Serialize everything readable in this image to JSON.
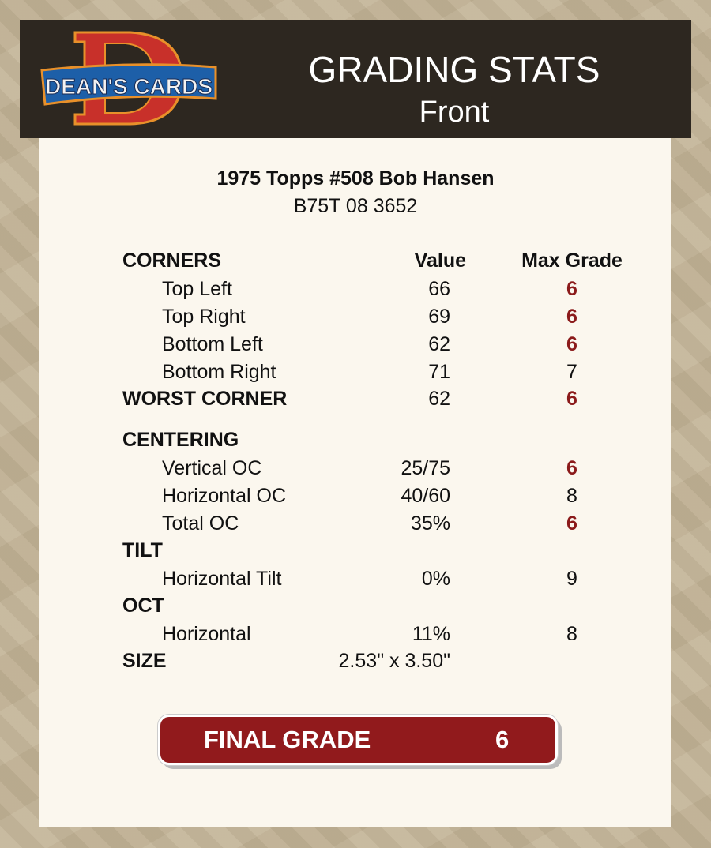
{
  "header": {
    "logo_text": "DEAN'S CARDS",
    "title": "GRADING STATS",
    "subtitle": "Front"
  },
  "card": {
    "name": "1975 Topps #508 Bob Hansen",
    "id": "B75T 08 3652"
  },
  "columns": {
    "value": "Value",
    "max_grade": "Max Grade"
  },
  "rows": [
    {
      "label": "CORNERS",
      "type": "section",
      "value": "",
      "max": "",
      "header": true
    },
    {
      "label": "Top Left",
      "type": "sub",
      "value": "66",
      "max": "6",
      "limiting": true
    },
    {
      "label": "Top Right",
      "type": "sub",
      "value": "69",
      "max": "6",
      "limiting": true
    },
    {
      "label": "Bottom Left",
      "type": "sub",
      "value": "62",
      "max": "6",
      "limiting": true
    },
    {
      "label": "Bottom Right",
      "type": "sub",
      "value": "71",
      "max": "7",
      "limiting": false
    },
    {
      "label": "WORST CORNER",
      "type": "section",
      "value": "62",
      "max": "6",
      "limiting": true
    },
    {
      "label": "CENTERING",
      "type": "section",
      "value": "",
      "max": ""
    },
    {
      "label": "Vertical OC",
      "type": "sub",
      "value": "25/75",
      "max": "6",
      "limiting": true
    },
    {
      "label": "Horizontal OC",
      "type": "sub",
      "value": "40/60",
      "max": "8",
      "limiting": false
    },
    {
      "label": "Total OC",
      "type": "sub",
      "value": "35%",
      "max": "6",
      "limiting": true
    },
    {
      "label": "TILT",
      "type": "section",
      "value": "",
      "max": ""
    },
    {
      "label": "Horizontal Tilt",
      "type": "sub",
      "value": "0%",
      "max": "9",
      "limiting": false
    },
    {
      "label": "OCT",
      "type": "section",
      "value": "",
      "max": ""
    },
    {
      "label": "Horizontal",
      "type": "sub",
      "value": "11%",
      "max": "8",
      "limiting": false
    },
    {
      "label": "SIZE",
      "type": "section",
      "value": "2.53\" x 3.50\"",
      "max": ""
    }
  ],
  "final": {
    "label": "FINAL GRADE",
    "value": "6"
  },
  "colors": {
    "header_bg": "#2d2720",
    "panel_bg": "#fbf7ee",
    "accent_red": "#911a1c",
    "limiting_grade": "#8b1a1a"
  }
}
